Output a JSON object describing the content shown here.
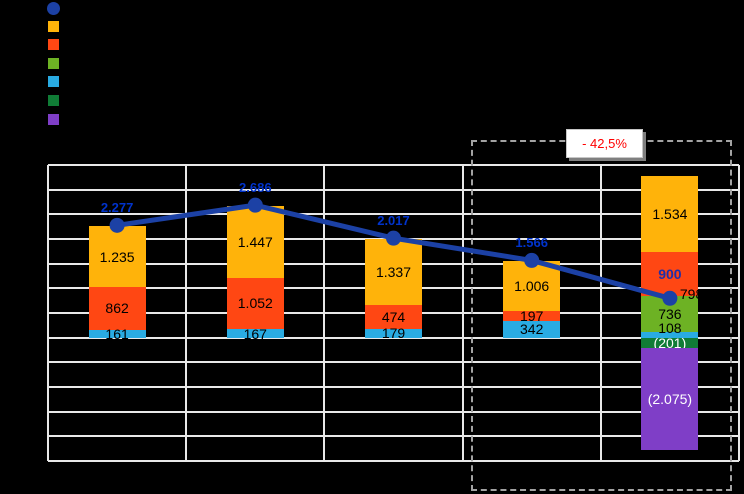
{
  "chart_data": {
    "type": "combo-stacked-bar-line",
    "title": "",
    "background": "#000000",
    "grid_color": "#E8E8E8",
    "legend": {
      "position": "top-left",
      "labels_visible": false,
      "items": [
        {
          "name": "line-series",
          "marker": "circle",
          "color": "#1C41A5"
        },
        {
          "name": "series-amber",
          "marker": "square",
          "color": "#FFB30A"
        },
        {
          "name": "series-orange",
          "marker": "square",
          "color": "#FF4713"
        },
        {
          "name": "series-green",
          "marker": "square",
          "color": "#6DB224"
        },
        {
          "name": "series-cyan",
          "marker": "square",
          "color": "#29ABE2"
        },
        {
          "name": "series-darkgreen",
          "marker": "square",
          "color": "#107C36"
        },
        {
          "name": "series-purple",
          "marker": "square",
          "color": "#7F3EC7"
        }
      ]
    },
    "axis": {
      "ymin": -2500,
      "ymax": 3500,
      "step": 500,
      "grid": true,
      "tick_labels_visible": false
    },
    "series_colors": {
      "amber": "#FFB30A",
      "orange": "#FF4713",
      "green": "#6DB224",
      "cyan": "#29ABE2",
      "darkgreen": "#107C36",
      "purple": "#7F3EC7"
    },
    "bars": [
      {
        "segments": [
          {
            "series": "amber",
            "value": 1235,
            "label": "1.235"
          },
          {
            "series": "orange",
            "value": 862,
            "label": "862"
          },
          {
            "series": "cyan",
            "value": 161,
            "label": "161"
          }
        ]
      },
      {
        "segments": [
          {
            "series": "amber",
            "value": 1447,
            "label": "1.447"
          },
          {
            "series": "orange",
            "value": 1052,
            "label": "1.052"
          },
          {
            "series": "cyan",
            "value": 167,
            "label": "167"
          }
        ]
      },
      {
        "segments": [
          {
            "series": "amber",
            "value": 1337,
            "label": "1.337"
          },
          {
            "series": "orange",
            "value": 474,
            "label": "474"
          },
          {
            "series": "cyan",
            "value": 179,
            "label": "179"
          }
        ]
      },
      {
        "segments": [
          {
            "series": "amber",
            "value": 1006,
            "label": "1.006"
          },
          {
            "series": "orange",
            "value": 197,
            "label": "197"
          },
          {
            "series": "cyan",
            "value": 342,
            "label": "342"
          }
        ]
      },
      {
        "segments": [
          {
            "series": "amber",
            "value": 1534,
            "label": "1.534"
          },
          {
            "series": "orange",
            "value": 900,
            "label": "900",
            "label_color": "#1F2FA8",
            "label_bold": true
          },
          {
            "series": "green",
            "value": 736,
            "label": "736"
          },
          {
            "series": "cyan",
            "value": 108,
            "label": "108",
            "label_dy": -7
          },
          {
            "series": "darkgreen",
            "value": -201,
            "label": "(201)",
            "label_color": "#FFFFFF"
          },
          {
            "series": "purple",
            "value": -2075,
            "label": "(2.075)",
            "label_color": "#FFFFFF"
          }
        ]
      }
    ],
    "line": {
      "color": "#1C41A5",
      "label_color": "#0033CC",
      "points": [
        {
          "value": 2277,
          "label": "2.277",
          "label_pos": "above"
        },
        {
          "value": 2686,
          "label": "2.686",
          "label_pos": "above"
        },
        {
          "value": 2017,
          "label": "2.017",
          "label_pos": "above"
        },
        {
          "value": 1566,
          "label": "1.566",
          "label_pos": "above"
        },
        {
          "value": 798,
          "label": "798",
          "label_pos": "right",
          "label_color": "#000000"
        }
      ]
    },
    "annotation": {
      "text": "- 42,5%",
      "color": "#FF0000"
    }
  }
}
